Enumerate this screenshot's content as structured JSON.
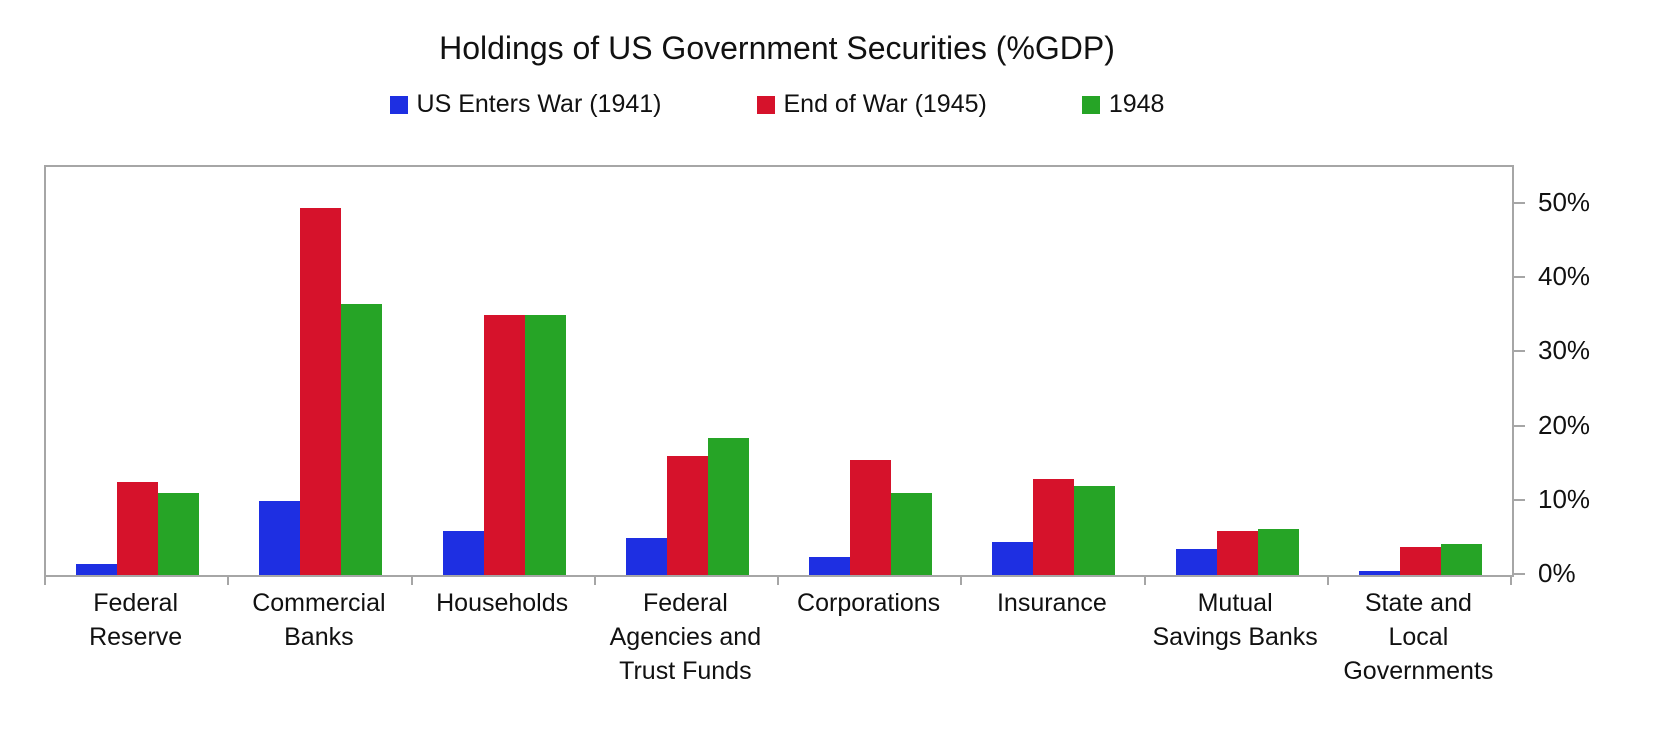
{
  "chart_data": {
    "type": "bar",
    "title": "Holdings of US Government Securities (%GDP)",
    "categories": [
      "Federal Reserve",
      "Commercial Banks",
      "Households",
      "Federal Agencies and Trust Funds",
      "Corporations",
      "Insurance",
      "Mutual Savings Banks",
      "State and Local Governments"
    ],
    "category_display_lines": [
      [
        "Federal",
        "Reserve"
      ],
      [
        "Commercial",
        "Banks"
      ],
      [
        "Households"
      ],
      [
        "Federal",
        "Agencies and",
        "Trust Funds"
      ],
      [
        "Corporations"
      ],
      [
        "Insurance"
      ],
      [
        "Mutual",
        "Savings Banks"
      ],
      [
        "State and",
        "Local",
        "Governments"
      ]
    ],
    "series": [
      {
        "name": "US Enters War (1941)",
        "color": "#1e2fe2",
        "values": [
          1.5,
          10,
          6,
          5,
          2.5,
          4.5,
          3.5,
          0.5
        ]
      },
      {
        "name": "End of War (1945)",
        "color": "#d6122b",
        "values": [
          12.5,
          49.5,
          35,
          16,
          15.5,
          13,
          6,
          3.8
        ]
      },
      {
        "name": "1948",
        "color": "#26a426",
        "values": [
          11,
          36.5,
          35,
          18.5,
          11,
          12,
          6.2,
          4.2
        ]
      }
    ],
    "xlabel": "",
    "ylabel": "",
    "ylim": [
      0,
      55
    ],
    "y_tick_values": [
      0,
      10,
      20,
      30,
      40,
      50
    ],
    "y_tick_labels": [
      "0%",
      "10%",
      "20%",
      "30%",
      "40%",
      "50%"
    ],
    "grid": false,
    "legend_position": "top",
    "axis_color": "#a6a6a6",
    "y_axis_side": "right"
  }
}
